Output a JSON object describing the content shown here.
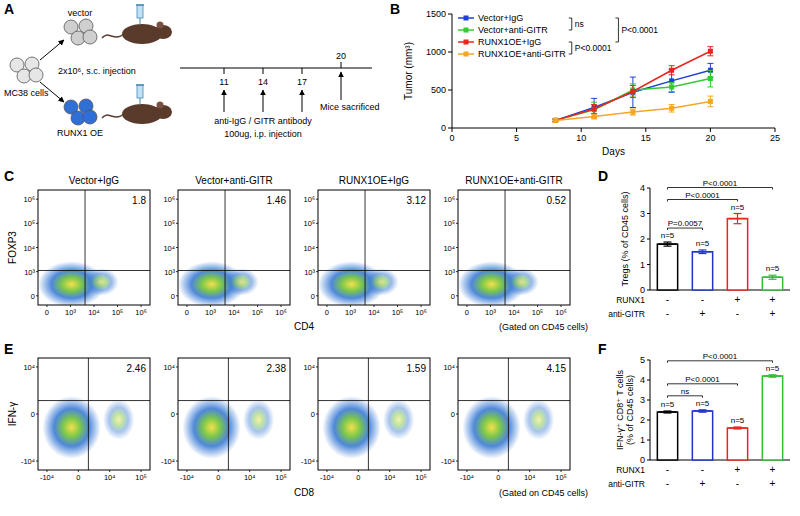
{
  "panel_labels": [
    "A",
    "B",
    "C",
    "D",
    "E",
    "F"
  ],
  "diagram": {
    "source_label": "MC38 cells",
    "arms": [
      "vector",
      "RUNX1 OE"
    ],
    "injection": "2x10⁶, s.c. injection",
    "treatment_days": [
      11,
      14,
      17
    ],
    "treatment": [
      "anti-IgG / GITR antibody",
      "100ug, i.p. injection"
    ],
    "sacrifice_day": 20,
    "sacrifice": "Mice sacrificed"
  },
  "flow_plots": [
    {
      "y_label": "FOXP3",
      "x_label": "CD4",
      "gate": "(Gated on CD45 cells)",
      "x_ticks": [
        "0",
        "10³",
        "10⁴",
        "10⁵",
        "10⁶"
      ],
      "y_ticks": [
        "0",
        "10³",
        "10⁴",
        "10⁵",
        "10⁶"
      ],
      "titles": [
        "Vector+IgG",
        "Vector+anti-GITR",
        "RUNX1OE+IgG",
        "RUNX1OE+anti-GITR"
      ],
      "percentages": [
        1.8,
        1.46,
        3.12,
        0.52
      ]
    },
    {
      "y_label": "IFN-γ",
      "x_label": "CD8",
      "gate": "(Gated on CD45 cells)",
      "x_ticks": [
        "-10⁴",
        "0",
        "10⁴",
        "10⁵"
      ],
      "y_ticks": [
        "-10⁴",
        "0",
        "10⁴"
      ],
      "percentages": [
        2.46,
        2.38,
        1.59,
        4.15
      ]
    }
  ],
  "chart_data": [
    {
      "type": "line",
      "x": [
        8,
        11,
        14,
        17,
        20
      ],
      "x_label": "Days",
      "y_label": "Tumor (mm³)",
      "xlim": [
        0,
        25
      ],
      "xticks": [
        0,
        5,
        10,
        15,
        20,
        25
      ],
      "ylim": [
        0,
        1500
      ],
      "yticks": [
        0,
        500,
        1000,
        1500
      ],
      "legend": "top-left",
      "marker": "square",
      "series": [
        {
          "name": "Vector+IgG",
          "color": "#1f3fd6",
          "values": [
            100,
            270,
            470,
            620,
            760
          ],
          "errors": [
            15,
            120,
            200,
            150,
            90
          ]
        },
        {
          "name": "Vector+anti-GITR",
          "color": "#33cc33",
          "values": [
            100,
            240,
            500,
            540,
            650
          ],
          "errors": [
            15,
            100,
            80,
            60,
            110
          ]
        },
        {
          "name": "RUNX1OE+IgG",
          "color": "#e8261f",
          "values": [
            100,
            250,
            480,
            760,
            1010
          ],
          "errors": [
            15,
            60,
            80,
            60,
            60
          ]
        },
        {
          "name": "RUNX1OE+anti-GITR",
          "color": "#f5a623",
          "values": [
            100,
            150,
            210,
            260,
            350
          ],
          "errors": [
            15,
            30,
            40,
            50,
            70
          ]
        }
      ],
      "annotations": [
        "ns",
        "P<0.0001",
        "P<0.0001"
      ]
    },
    {
      "type": "bar",
      "y_label": "Tregs (% of CD45 cells)",
      "categories": [
        null,
        null,
        null,
        null
      ],
      "values": [
        1.8,
        1.5,
        2.8,
        0.5
      ],
      "errors": [
        0.08,
        0.07,
        0.2,
        0.08
      ],
      "colors": [
        "#000000",
        "#2233cc",
        "#e8261f",
        "#33bb33"
      ],
      "ylim": [
        0,
        4
      ],
      "yticks": [
        0,
        1,
        2,
        3,
        4
      ],
      "n_labels": [
        "n=5",
        "n=5",
        "n=5",
        "n=5"
      ],
      "annotations": [
        "P=0.0057",
        "P<0.0001",
        "P<0.0001"
      ],
      "condition_table": [
        {
          "label": "RUNX1",
          "values": [
            "-",
            "-",
            "+",
            "+"
          ]
        },
        {
          "label": "anti-GITR",
          "values": [
            "-",
            "+",
            "-",
            "+"
          ]
        }
      ]
    },
    {
      "type": "bar",
      "y_label": "IFN-γ⁺ CD8⁺ T cells (% of CD45 cells)",
      "categories": [
        null,
        null,
        null,
        null
      ],
      "values": [
        2.4,
        2.45,
        1.6,
        4.2
      ],
      "errors": [
        0.05,
        0.06,
        0.05,
        0.06
      ],
      "colors": [
        "#000000",
        "#2233cc",
        "#e8261f",
        "#33bb33"
      ],
      "ylim": [
        0,
        5
      ],
      "yticks": [
        0,
        1,
        2,
        3,
        4,
        5
      ],
      "n_labels": [
        "n=5",
        "n=5",
        "n=5",
        "n=5"
      ],
      "annotations": [
        "ns",
        "P<0.0001",
        "P<0.0001"
      ],
      "condition_table": [
        {
          "label": "RUNX1",
          "values": [
            "-",
            "-",
            "+",
            "+"
          ]
        },
        {
          "label": "anti-GITR",
          "values": [
            "-",
            "+",
            "-",
            "+"
          ]
        }
      ]
    }
  ]
}
